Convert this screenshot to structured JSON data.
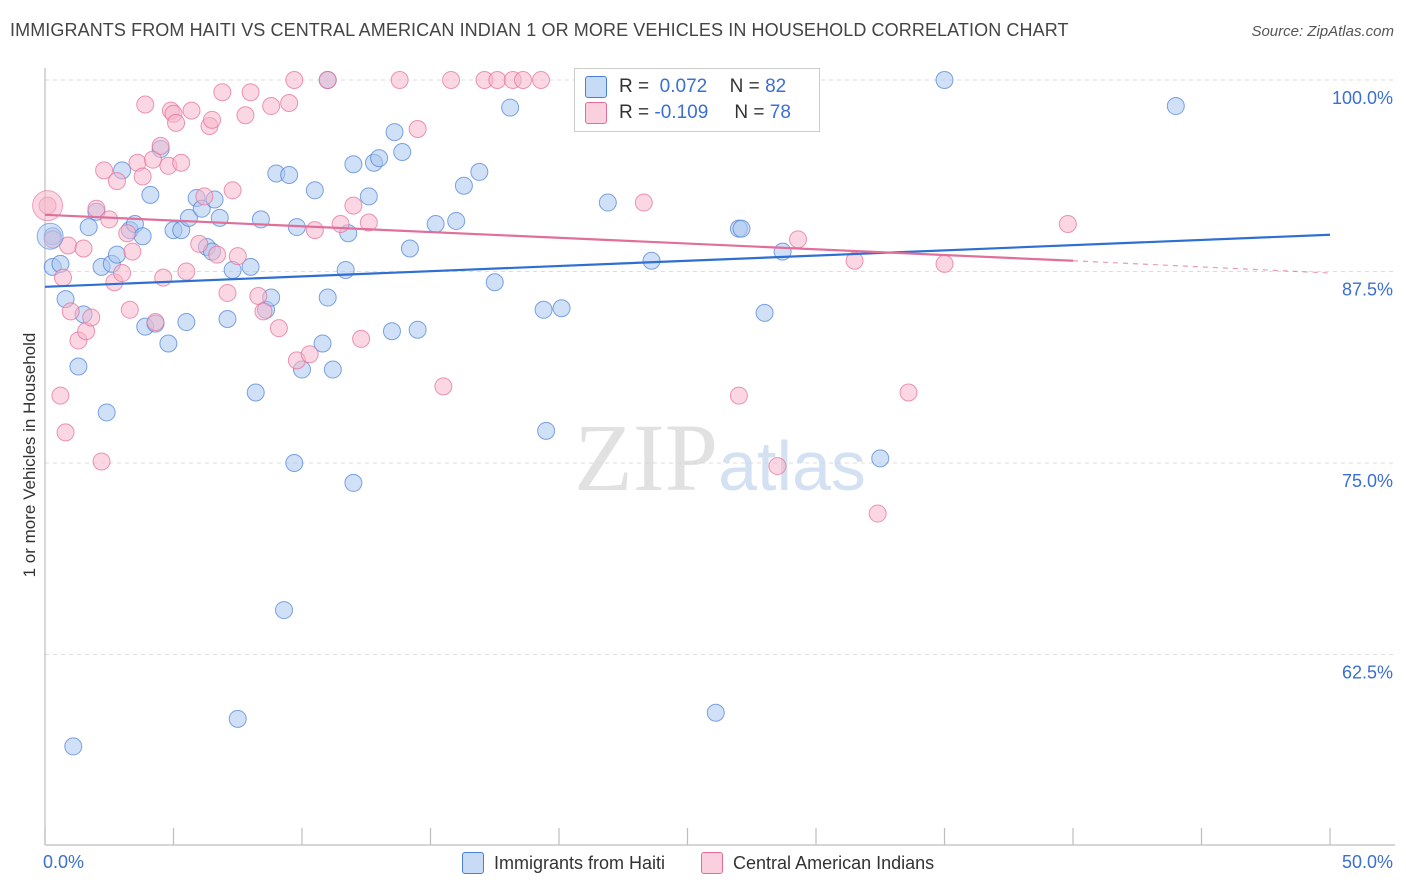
{
  "title": "IMMIGRANTS FROM HAITI VS CENTRAL AMERICAN INDIAN 1 OR MORE VEHICLES IN HOUSEHOLD CORRELATION CHART",
  "source": "Source: ZipAtlas.com",
  "watermark": "ZIPatlas",
  "legend_box": {
    "rows": [
      {
        "r_label": "R =",
        "r_value": "0.072",
        "n_label": "N =",
        "n_value": "82",
        "color": "#a9c7f0"
      },
      {
        "r_label": "R =",
        "r_value": "-0.109",
        "n_label": "N =",
        "n_value": "78",
        "color": "#f6b6cb"
      }
    ]
  },
  "legend_bottom": [
    {
      "label": "Immigrants from Haiti",
      "color": "#a9c7f0"
    },
    {
      "label": "Central American Indians",
      "color": "#f6b6cb"
    }
  ],
  "chart_data": {
    "type": "scatter",
    "xlabel": "",
    "ylabel": "1 or more Vehicles in Household",
    "xlim": [
      0,
      50
    ],
    "ylim": [
      53,
      102
    ],
    "x_tick_labels": [
      "0.0%",
      "50.0%"
    ],
    "y_ticks": [
      62.5,
      75.0,
      87.5,
      100.0
    ],
    "y_tick_labels": [
      "62.5%",
      "75.0%",
      "87.5%",
      "100.0%"
    ],
    "grid": "horizontal dashed",
    "legend_position": "bottom",
    "series": [
      {
        "name": "Immigrants from Haiti",
        "color": "#4a7fd6",
        "fill": "#a9c7f0",
        "trend": {
          "x": [
            0,
            50
          ],
          "y": [
            86.5,
            89.9
          ]
        },
        "points": [
          [
            0.3,
            89.8
          ],
          [
            0.3,
            87.8
          ],
          [
            0.6,
            88.0
          ],
          [
            0.8,
            85.7
          ],
          [
            1.1,
            56.5
          ],
          [
            1.3,
            81.3
          ],
          [
            1.5,
            84.7
          ],
          [
            1.7,
            90.4
          ],
          [
            2.0,
            91.4
          ],
          [
            2.2,
            87.8
          ],
          [
            2.4,
            78.3
          ],
          [
            2.6,
            88.0
          ],
          [
            2.8,
            88.6
          ],
          [
            3.0,
            94.1
          ],
          [
            3.3,
            90.2
          ],
          [
            3.5,
            90.6
          ],
          [
            3.8,
            89.8
          ],
          [
            3.9,
            83.9
          ],
          [
            4.1,
            92.5
          ],
          [
            4.3,
            84.1
          ],
          [
            4.5,
            95.5
          ],
          [
            4.8,
            82.8
          ],
          [
            5.0,
            90.2
          ],
          [
            5.3,
            90.2
          ],
          [
            5.5,
            84.2
          ],
          [
            5.6,
            91.0
          ],
          [
            5.9,
            92.3
          ],
          [
            6.1,
            91.6
          ],
          [
            6.3,
            89.1
          ],
          [
            6.5,
            88.8
          ],
          [
            6.6,
            92.2
          ],
          [
            6.8,
            91.0
          ],
          [
            7.1,
            84.4
          ],
          [
            7.3,
            87.6
          ],
          [
            7.5,
            58.3
          ],
          [
            8.0,
            87.8
          ],
          [
            8.2,
            79.6
          ],
          [
            8.4,
            90.9
          ],
          [
            8.6,
            85.0
          ],
          [
            8.8,
            85.8
          ],
          [
            9.0,
            93.9
          ],
          [
            9.3,
            65.4
          ],
          [
            9.5,
            93.8
          ],
          [
            9.7,
            75.0
          ],
          [
            9.8,
            90.4
          ],
          [
            10.0,
            81.1
          ],
          [
            10.5,
            92.8
          ],
          [
            10.8,
            82.8
          ],
          [
            11.0,
            85.8
          ],
          [
            11.2,
            81.1
          ],
          [
            11.0,
            100.0
          ],
          [
            11.7,
            87.6
          ],
          [
            11.8,
            90.0
          ],
          [
            12.0,
            94.5
          ],
          [
            12.0,
            73.7
          ],
          [
            12.6,
            92.4
          ],
          [
            12.8,
            94.6
          ],
          [
            13.0,
            94.9
          ],
          [
            13.5,
            83.6
          ],
          [
            13.6,
            96.6
          ],
          [
            13.9,
            95.3
          ],
          [
            14.2,
            89.0
          ],
          [
            14.5,
            83.7
          ],
          [
            15.2,
            90.6
          ],
          [
            16.0,
            90.8
          ],
          [
            16.3,
            93.1
          ],
          [
            16.9,
            94.0
          ],
          [
            17.5,
            86.8
          ],
          [
            18.1,
            98.2
          ],
          [
            19.4,
            85.0
          ],
          [
            19.5,
            77.1
          ],
          [
            20.1,
            85.1
          ],
          [
            21.9,
            92.0
          ],
          [
            23.6,
            88.2
          ],
          [
            26.1,
            58.7
          ],
          [
            27.0,
            90.3
          ],
          [
            27.1,
            90.3
          ],
          [
            28.0,
            84.8
          ],
          [
            28.7,
            88.8
          ],
          [
            32.5,
            75.3
          ],
          [
            35.0,
            100.0
          ],
          [
            44.0,
            98.3
          ]
        ]
      },
      {
        "name": "Central American Indians",
        "color": "#e46c99",
        "fill": "#f6b6cb",
        "trend": {
          "x": [
            0,
            40
          ],
          "y": [
            91.2,
            88.2
          ]
        },
        "trend_dashed": {
          "x": [
            40,
            50
          ],
          "y": [
            88.2,
            87.4
          ]
        },
        "points": [
          [
            0.1,
            91.8
          ],
          [
            0.3,
            89.6
          ],
          [
            0.6,
            79.4
          ],
          [
            0.7,
            87.1
          ],
          [
            0.8,
            77.0
          ],
          [
            0.9,
            89.2
          ],
          [
            1.0,
            84.9
          ],
          [
            1.3,
            83.0
          ],
          [
            1.5,
            89.0
          ],
          [
            1.6,
            83.6
          ],
          [
            1.8,
            84.5
          ],
          [
            2.0,
            91.6
          ],
          [
            2.2,
            75.1
          ],
          [
            2.3,
            94.1
          ],
          [
            2.5,
            90.9
          ],
          [
            2.7,
            86.8
          ],
          [
            2.8,
            93.4
          ],
          [
            3.0,
            87.4
          ],
          [
            3.2,
            90.0
          ],
          [
            3.3,
            85.0
          ],
          [
            3.4,
            88.8
          ],
          [
            3.6,
            94.6
          ],
          [
            3.8,
            93.7
          ],
          [
            3.9,
            98.4
          ],
          [
            4.2,
            94.8
          ],
          [
            4.3,
            84.2
          ],
          [
            4.5,
            95.7
          ],
          [
            4.6,
            87.1
          ],
          [
            4.8,
            94.4
          ],
          [
            4.9,
            98.0
          ],
          [
            5.0,
            97.8
          ],
          [
            5.1,
            97.2
          ],
          [
            5.3,
            94.6
          ],
          [
            5.5,
            87.5
          ],
          [
            5.7,
            98.0
          ],
          [
            6.0,
            89.3
          ],
          [
            6.2,
            92.4
          ],
          [
            6.4,
            97.0
          ],
          [
            6.5,
            97.4
          ],
          [
            6.7,
            88.6
          ],
          [
            6.9,
            99.2
          ],
          [
            7.1,
            86.1
          ],
          [
            7.3,
            92.8
          ],
          [
            7.5,
            88.5
          ],
          [
            7.8,
            97.7
          ],
          [
            8.0,
            99.2
          ],
          [
            8.3,
            85.9
          ],
          [
            8.5,
            84.9
          ],
          [
            8.8,
            98.3
          ],
          [
            9.1,
            83.8
          ],
          [
            9.5,
            98.5
          ],
          [
            9.7,
            100.0
          ],
          [
            9.8,
            81.7
          ],
          [
            10.3,
            82.1
          ],
          [
            10.5,
            90.2
          ],
          [
            11.0,
            100.0
          ],
          [
            11.5,
            90.6
          ],
          [
            12.0,
            91.8
          ],
          [
            12.3,
            83.1
          ],
          [
            12.6,
            90.7
          ],
          [
            13.8,
            100.0
          ],
          [
            14.5,
            96.8
          ],
          [
            15.5,
            80.0
          ],
          [
            15.8,
            100.0
          ],
          [
            17.1,
            100.0
          ],
          [
            17.6,
            100.0
          ],
          [
            18.2,
            100.0
          ],
          [
            18.6,
            100.0
          ],
          [
            19.3,
            100.0
          ],
          [
            23.3,
            92.0
          ],
          [
            27.0,
            79.4
          ],
          [
            28.5,
            74.8
          ],
          [
            29.3,
            89.6
          ],
          [
            31.5,
            88.2
          ],
          [
            32.4,
            71.7
          ],
          [
            33.6,
            79.6
          ],
          [
            35.0,
            88.0
          ],
          [
            39.8,
            90.6
          ]
        ]
      }
    ]
  }
}
